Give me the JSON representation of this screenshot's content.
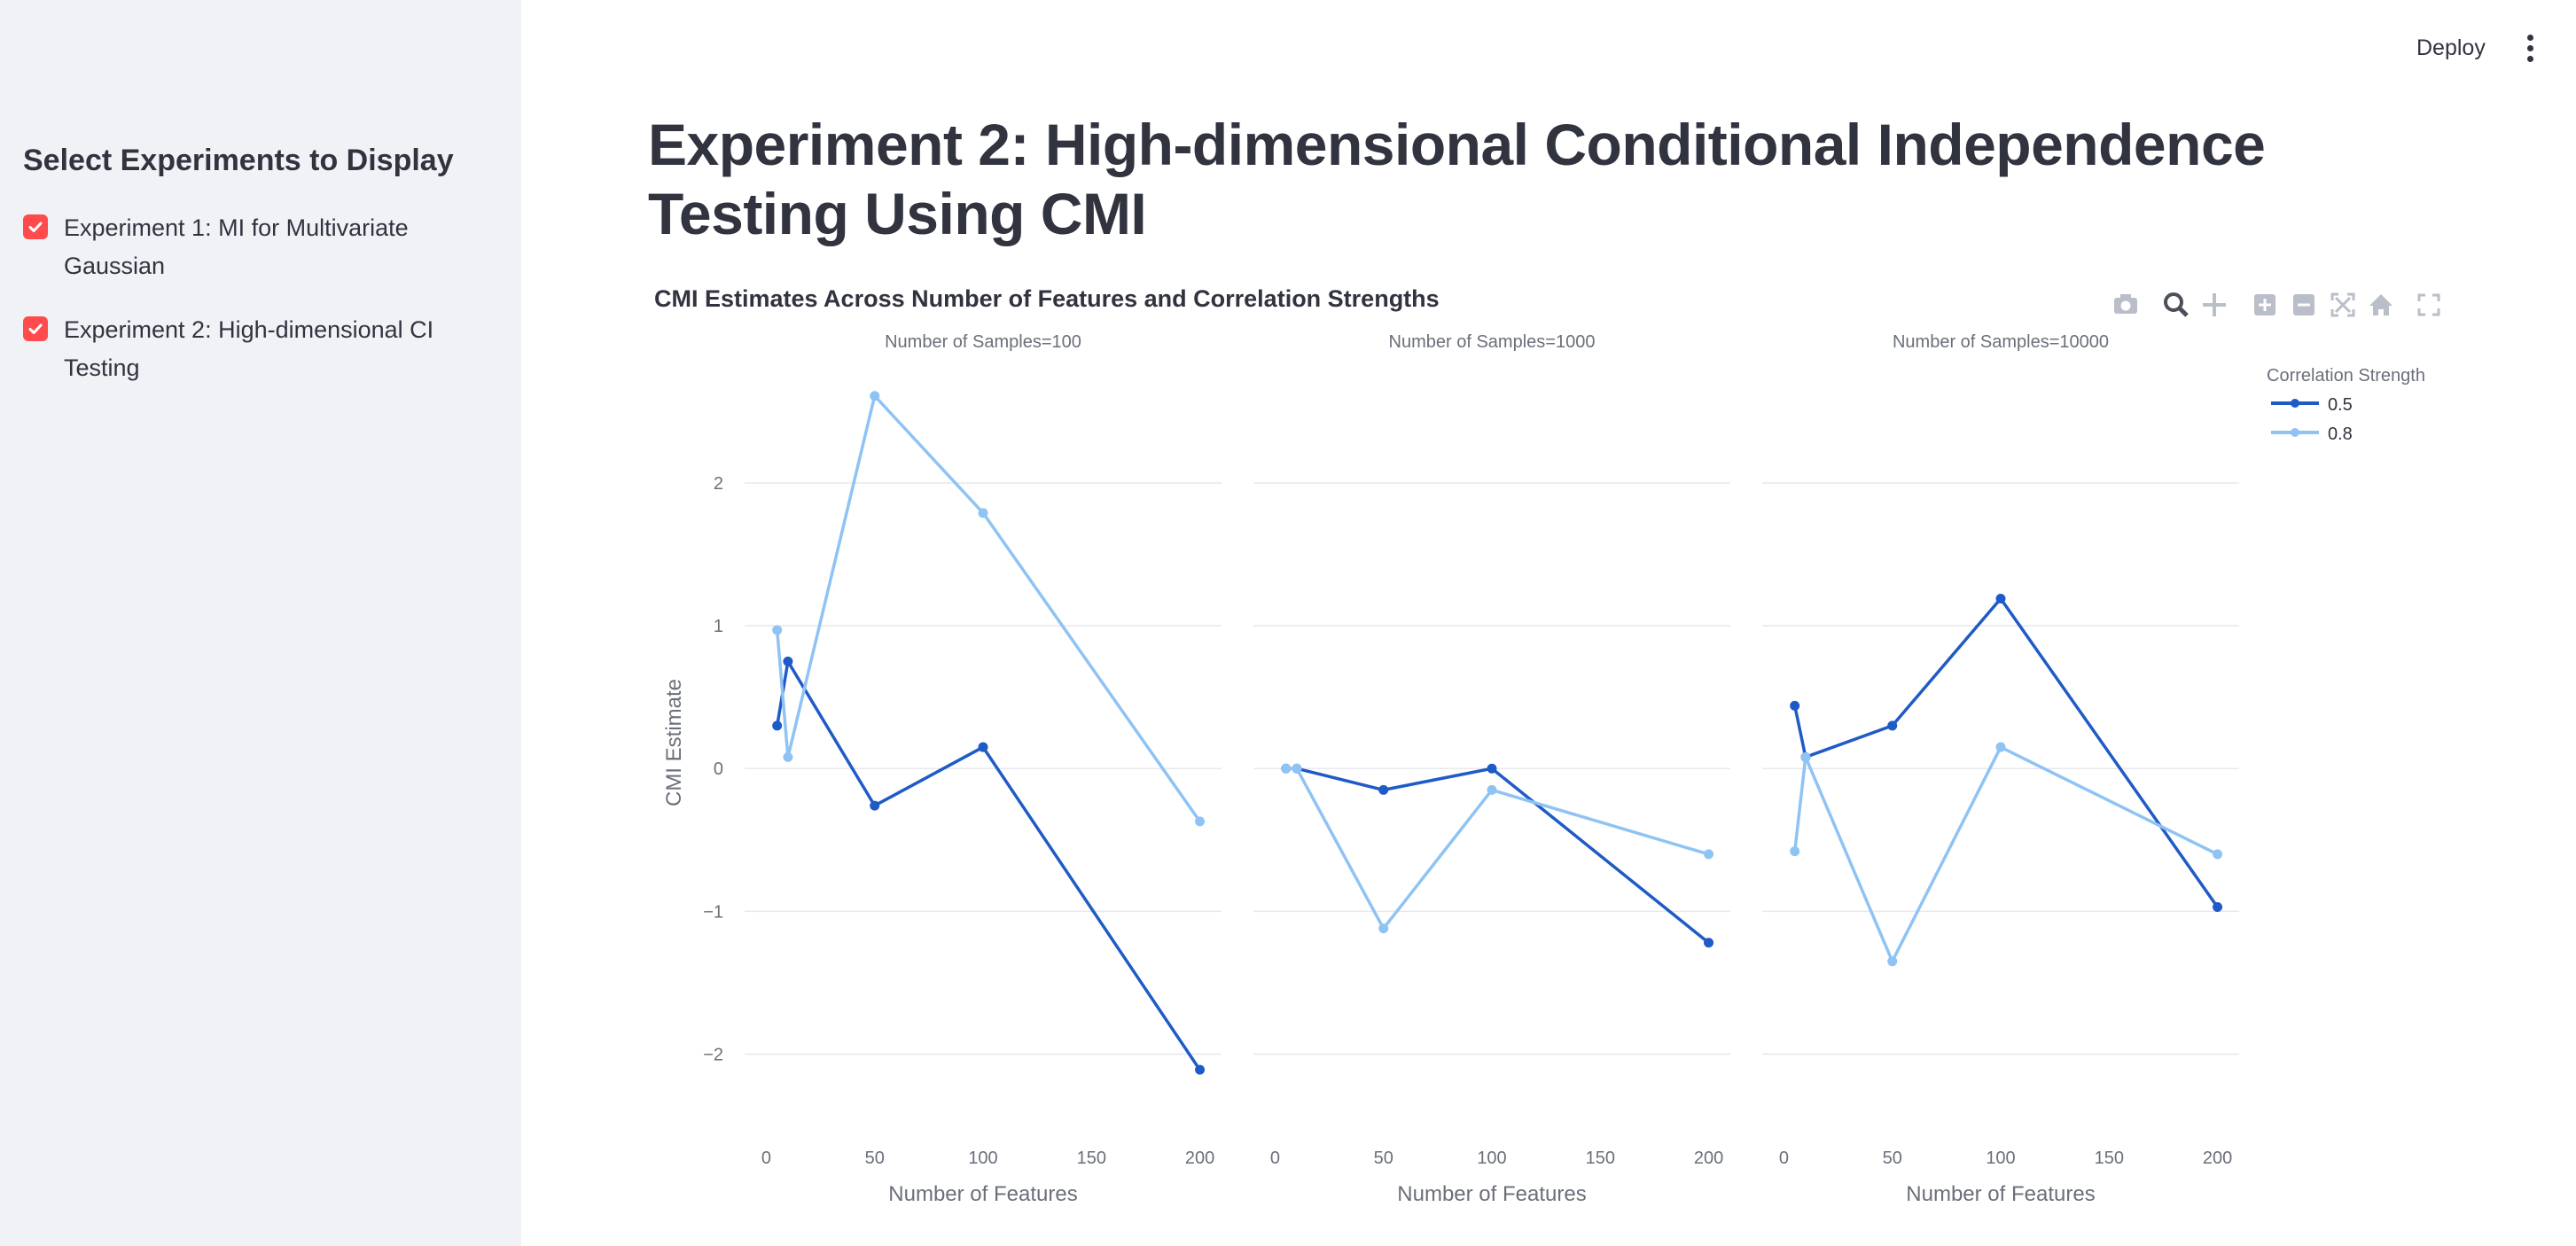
{
  "sidebar": {
    "heading": "Select Experiments to Display",
    "experiments": [
      {
        "label": "Experiment 1: MI for Multivariate Gaussian",
        "checked": true
      },
      {
        "label": "Experiment 2: High-dimensional CI Testing",
        "checked": true
      }
    ]
  },
  "header": {
    "deploy_label": "Deploy",
    "menu_icon": "kebab-menu-icon"
  },
  "page": {
    "title": "Experiment 2: High-dimensional Conditional Independence Testing Using CMI"
  },
  "modebar": {
    "icons": [
      "camera-icon",
      "zoom-icon",
      "pan-icon",
      "zoom-in-icon",
      "zoom-out-icon",
      "autoscale-icon",
      "reset-axes-icon",
      "fullscreen-icon"
    ]
  },
  "colors": {
    "accent": "#ff4b4b",
    "series_0_5": "#1f5bc6",
    "series_0_8": "#8fc3f4"
  },
  "chart_data": {
    "type": "line",
    "title": "CMI Estimates Across Number of Features and Correlation Strengths",
    "ylabel": "CMI Estimate",
    "xlabel": "Number of Features",
    "legend_title": "Correlation Strength",
    "legend_position": "top-right",
    "ylim": [
      -2.5,
      2.9
    ],
    "xlim": [
      -10,
      210
    ],
    "yticks": [
      -2,
      -1,
      0,
      1,
      2
    ],
    "ytick_labels": [
      "−2",
      "−1",
      "0",
      "1",
      "2"
    ],
    "xticks": [
      0,
      50,
      100,
      150,
      200
    ],
    "grid": true,
    "panels": [
      {
        "subtitle": "Number of Samples=100",
        "series": [
          {
            "name": "0.5",
            "x": [
              5,
              10,
              50,
              100,
              200
            ],
            "y": [
              0.3,
              0.75,
              -0.26,
              0.15,
              -2.11
            ]
          },
          {
            "name": "0.8",
            "x": [
              5,
              10,
              50,
              100,
              200
            ],
            "y": [
              0.97,
              0.08,
              2.61,
              1.79,
              -0.37
            ]
          }
        ]
      },
      {
        "subtitle": "Number of Samples=1000",
        "series": [
          {
            "name": "0.5",
            "x": [
              5,
              10,
              50,
              100,
              200
            ],
            "y": [
              0.0,
              0.0,
              -0.15,
              0.0,
              -1.22
            ]
          },
          {
            "name": "0.8",
            "x": [
              5,
              10,
              50,
              100,
              200
            ],
            "y": [
              0.0,
              0.0,
              -1.12,
              -0.15,
              -0.6
            ]
          }
        ]
      },
      {
        "subtitle": "Number of Samples=10000",
        "series": [
          {
            "name": "0.5",
            "x": [
              5,
              10,
              50,
              100,
              200
            ],
            "y": [
              0.44,
              0.08,
              0.3,
              1.19,
              -0.97
            ]
          },
          {
            "name": "0.8",
            "x": [
              5,
              10,
              50,
              100,
              200
            ],
            "y": [
              -0.58,
              0.08,
              -1.35,
              0.15,
              -0.6
            ]
          }
        ]
      }
    ]
  }
}
